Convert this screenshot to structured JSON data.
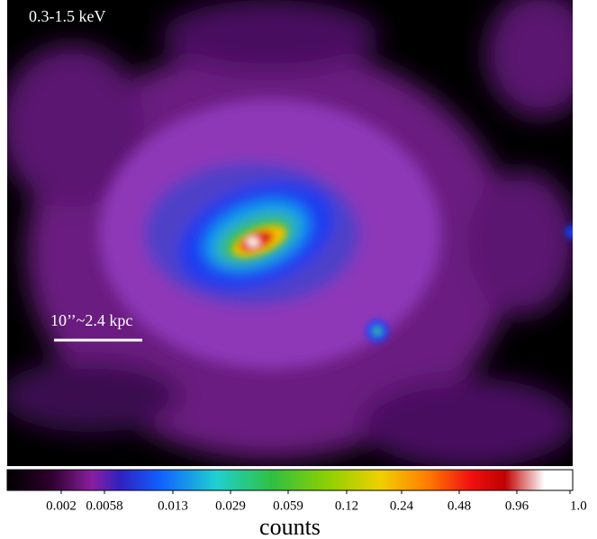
{
  "image": {
    "band_label": "0.3-1.5 keV",
    "scale_bar_label": "10’’~2.4 kpc"
  },
  "colorbar": {
    "ticks": [
      0.002,
      0.0058,
      0.013,
      0.029,
      0.059,
      0.12,
      0.24,
      0.48,
      0.96,
      {
        "value": 1,
        "label": "1.0"
      }
    ],
    "label": "counts"
  }
}
